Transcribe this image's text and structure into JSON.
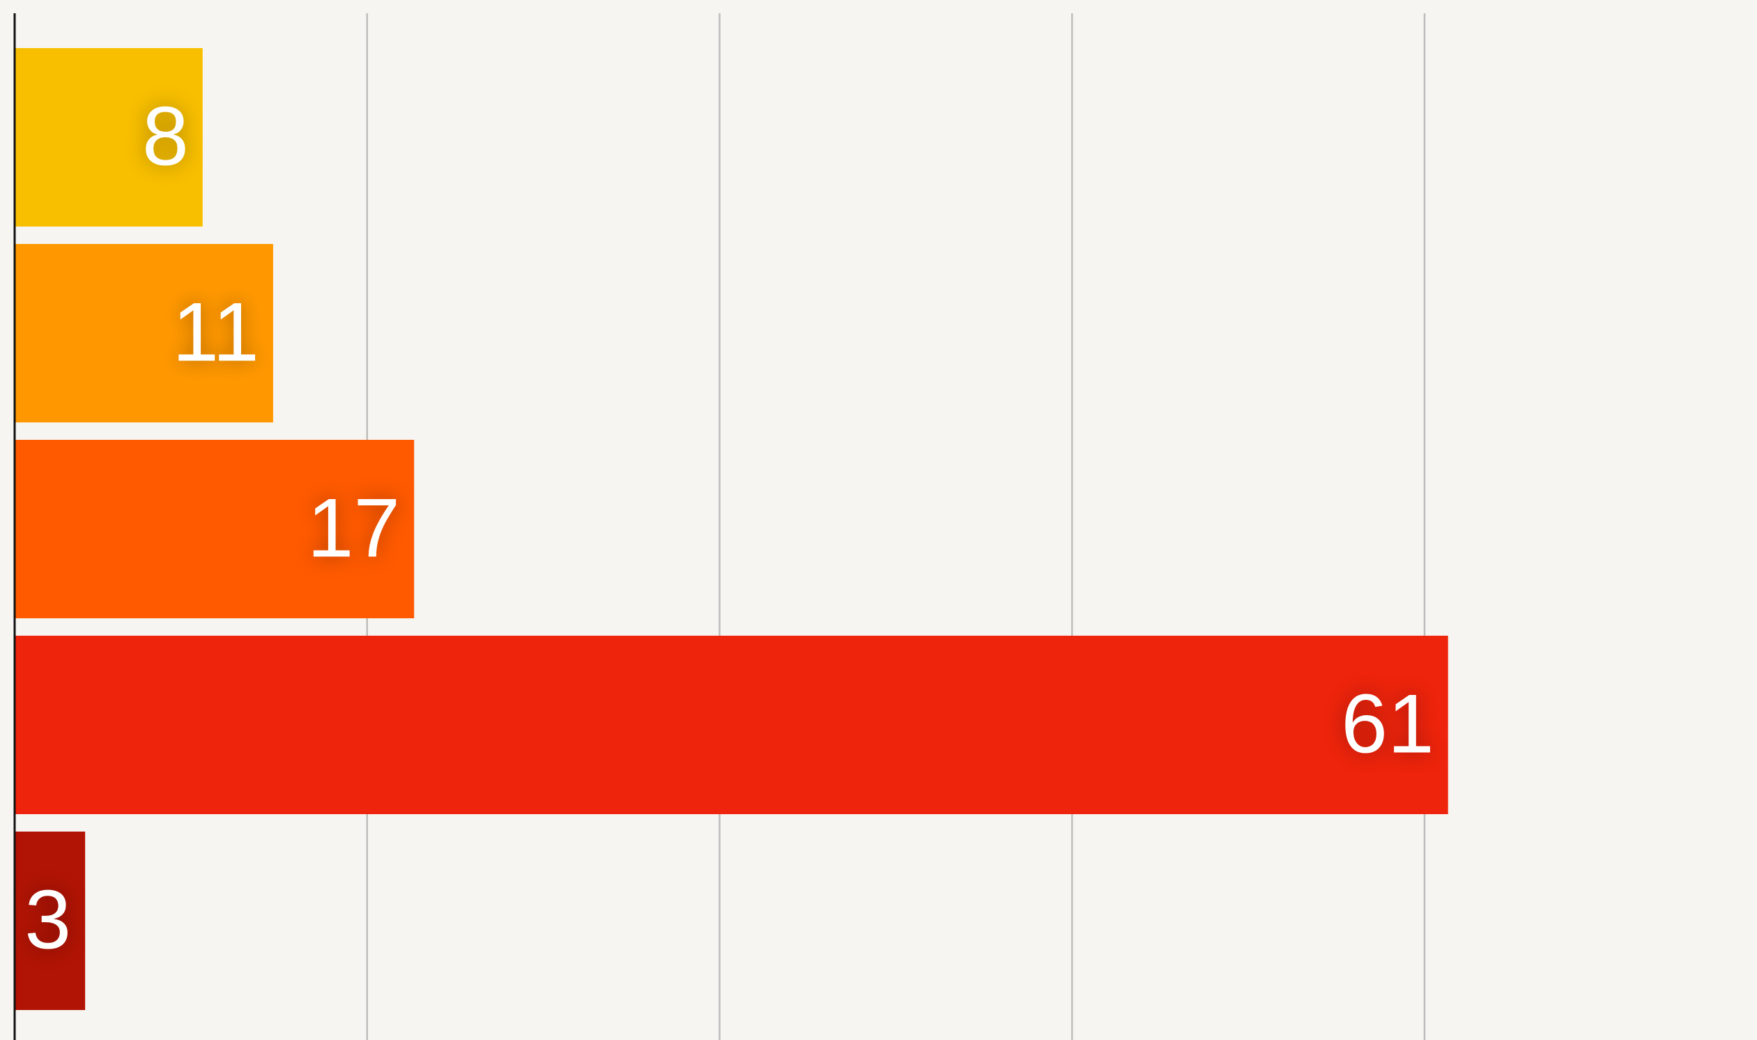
{
  "chart_data": {
    "type": "hbar",
    "values": [
      8,
      11,
      17,
      61,
      3
    ],
    "colors": [
      "#f8bf00",
      "#ff9800",
      "#ff5a00",
      "#ee240c",
      "#b11404"
    ],
    "xlim": [
      0,
      74
    ],
    "xticks": [
      0,
      15,
      30,
      45,
      60
    ],
    "grid": true
  }
}
